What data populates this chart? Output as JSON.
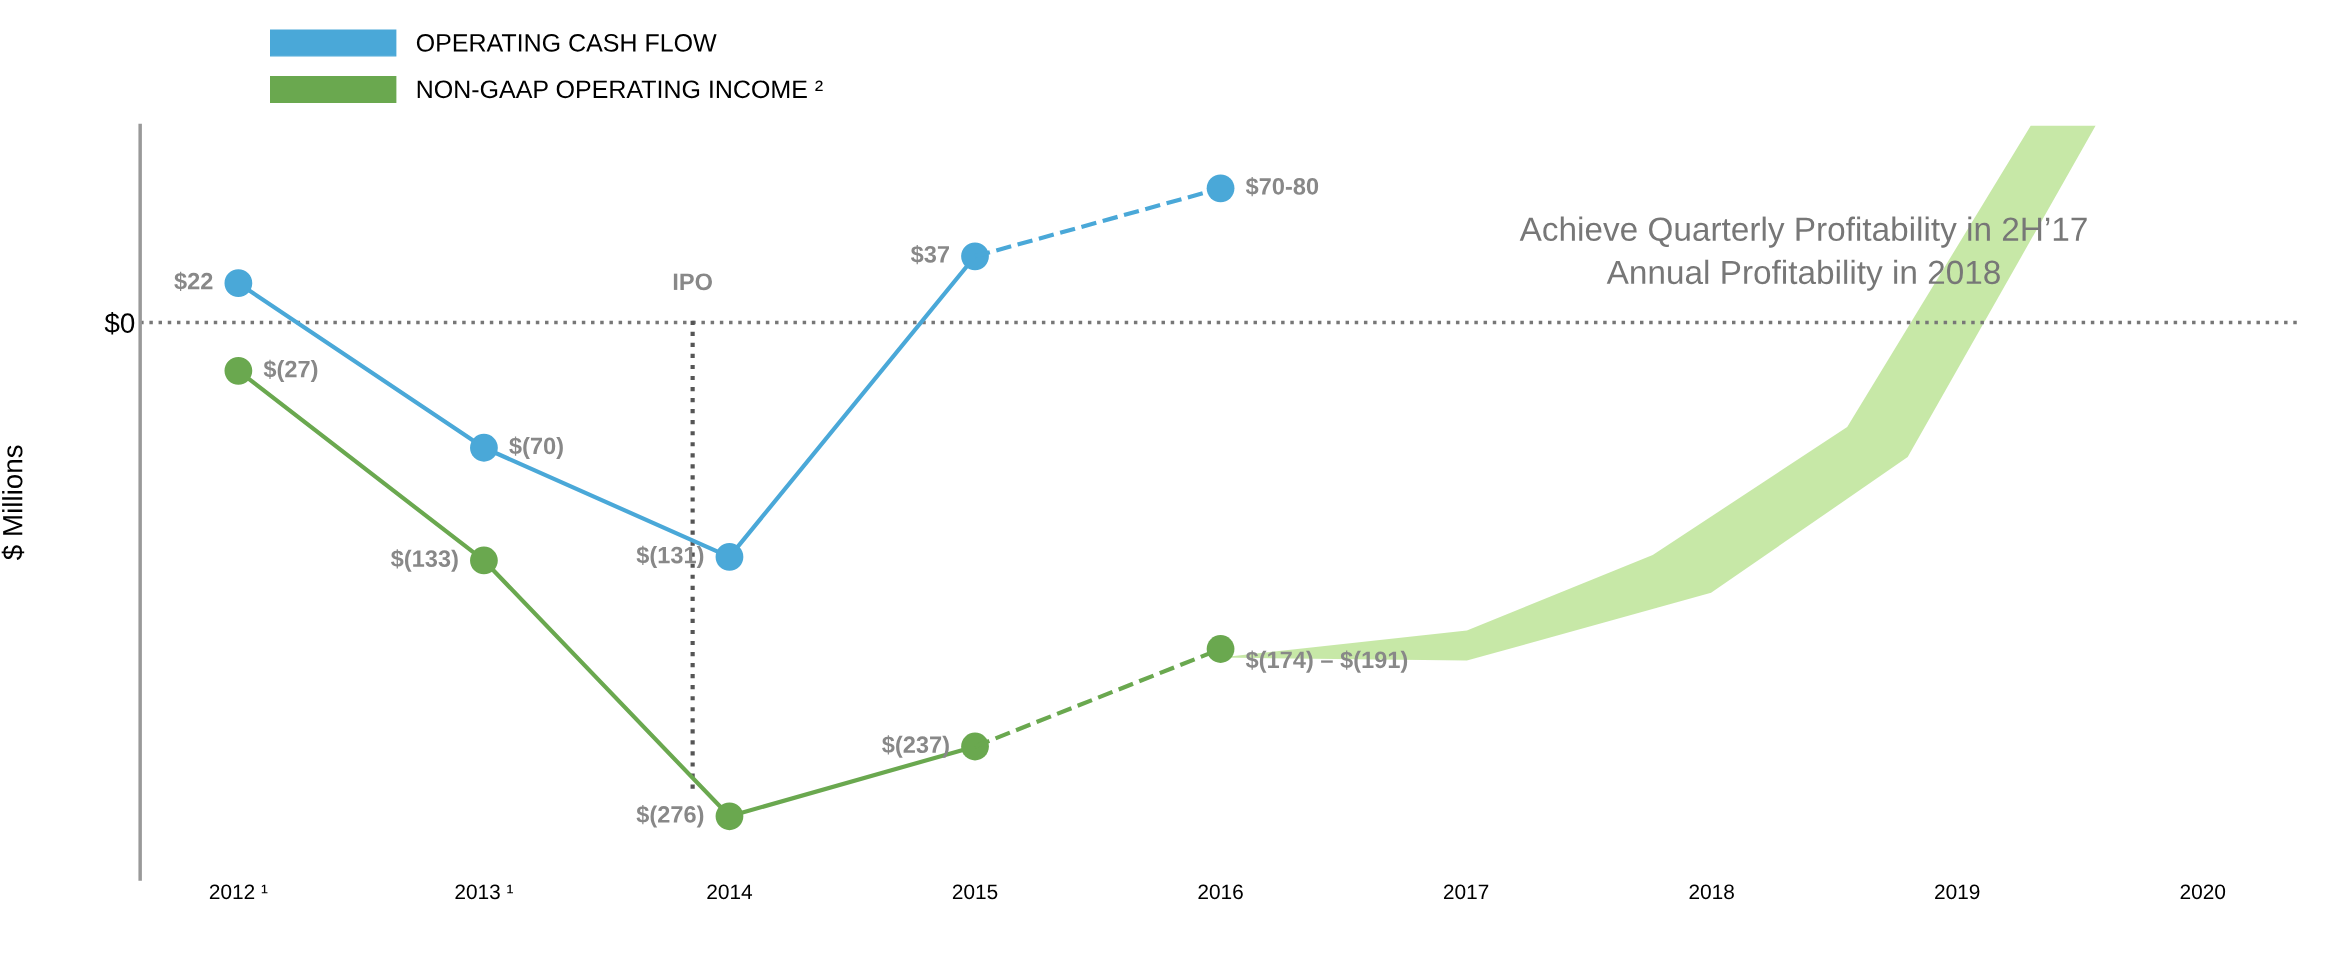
{
  "chart_data": {
    "type": "line",
    "categories": [
      "2012 ¹",
      "2013 ¹",
      "2014",
      "2015",
      "2016",
      "2017",
      "2018",
      "2019",
      "2020"
    ],
    "series": [
      {
        "name": "OPERATING CASH FLOW",
        "color": "#4aa8d8",
        "values": [
          22,
          -70,
          -131,
          37,
          null,
          null,
          null,
          null,
          null
        ],
        "value_labels": [
          "$22",
          "$(70)",
          "$(131)",
          "$37",
          null,
          null,
          null,
          null,
          null
        ],
        "marker": "circle",
        "line_style": "solid"
      },
      {
        "color": "#4aa8d8",
        "values": [
          null,
          null,
          null,
          37,
          75,
          null,
          null,
          null,
          null
        ],
        "value_labels": [
          null,
          null,
          null,
          null,
          "$70-80",
          null,
          null,
          null,
          null
        ],
        "marker": "circle",
        "line_style": "dashed"
      },
      {
        "name": "NON-GAAP OPERATING INCOME ²",
        "color": "#6aa84f",
        "values": [
          -27,
          -133,
          -276,
          -237,
          null,
          null,
          null,
          null,
          null
        ],
        "value_labels": [
          "$(27)",
          "$(133)",
          "$(276)",
          "$(237)",
          null,
          null,
          null,
          null,
          null
        ],
        "marker": "circle",
        "line_style": "solid"
      },
      {
        "color": "#6aa84f",
        "values": [
          null,
          null,
          null,
          -237,
          -182.5,
          null,
          null,
          null,
          null
        ],
        "value_labels": [
          null,
          null,
          null,
          null,
          "$(174) – $(191)",
          null,
          null,
          null,
          null
        ],
        "marker": "circle",
        "line_style": "dashed"
      }
    ],
    "ylabel": "$ Millions",
    "ref_lines": [
      {
        "axis": "y",
        "value": 0,
        "label": "$0",
        "color": "#777777",
        "line_style": "dotted"
      }
    ],
    "annotations": [
      "IPO",
      "Achieve Quarterly Profitability in 2H’17\nAnnual Profitability in 2018"
    ],
    "legend": "top left"
  }
}
